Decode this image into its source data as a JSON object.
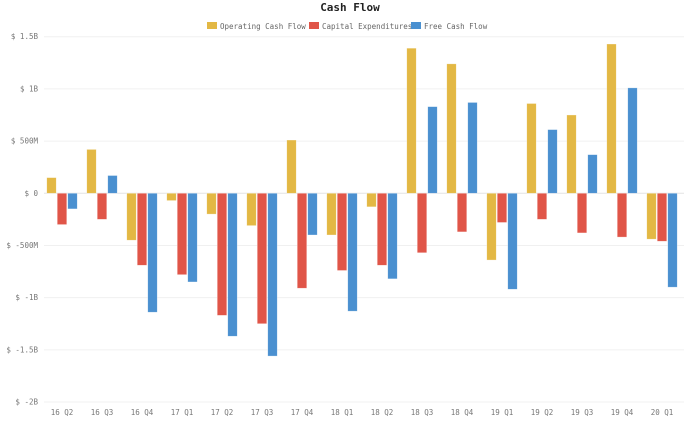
{
  "chart_data": {
    "type": "bar",
    "title": "Cash Flow",
    "xlabel": "",
    "ylabel": "",
    "ylim": [
      -2000,
      1500
    ],
    "y_unit": "$ millions",
    "yticks": [
      1500,
      1000,
      500,
      0,
      -500,
      -1000,
      -1500,
      -2000
    ],
    "ytick_labels": [
      "$ 1.5B",
      "$ 1B",
      "$ 500M",
      "$ 0",
      "$ -500M",
      "$ -1B",
      "$ -1.5B",
      "$ -2B"
    ],
    "grid": true,
    "legend_position": "top",
    "categories": [
      "16 Q2",
      "16 Q3",
      "16 Q4",
      "17 Q1",
      "17 Q2",
      "17 Q3",
      "17 Q4",
      "18 Q1",
      "18 Q2",
      "18 Q3",
      "18 Q4",
      "19 Q1",
      "19 Q2",
      "19 Q3",
      "19 Q4",
      "20 Q1"
    ],
    "series": [
      {
        "name": "Operating Cash Flow",
        "color": "#e3b844",
        "values": [
          150,
          420,
          -450,
          -70,
          -200,
          -310,
          510,
          -400,
          -130,
          1390,
          1240,
          -640,
          860,
          750,
          1430,
          -440
        ]
      },
      {
        "name": "Capital Expenditures",
        "color": "#e05548",
        "values": [
          -300,
          -250,
          -690,
          -780,
          -1170,
          -1250,
          -910,
          -740,
          -690,
          -570,
          -370,
          -280,
          -250,
          -380,
          -420,
          -460
        ]
      },
      {
        "name": "Free Cash Flow",
        "color": "#4a90d0",
        "values": [
          -150,
          170,
          -1140,
          -850,
          -1370,
          -1560,
          -400,
          -1130,
          -820,
          830,
          870,
          -920,
          610,
          370,
          1010,
          -900
        ]
      }
    ]
  }
}
